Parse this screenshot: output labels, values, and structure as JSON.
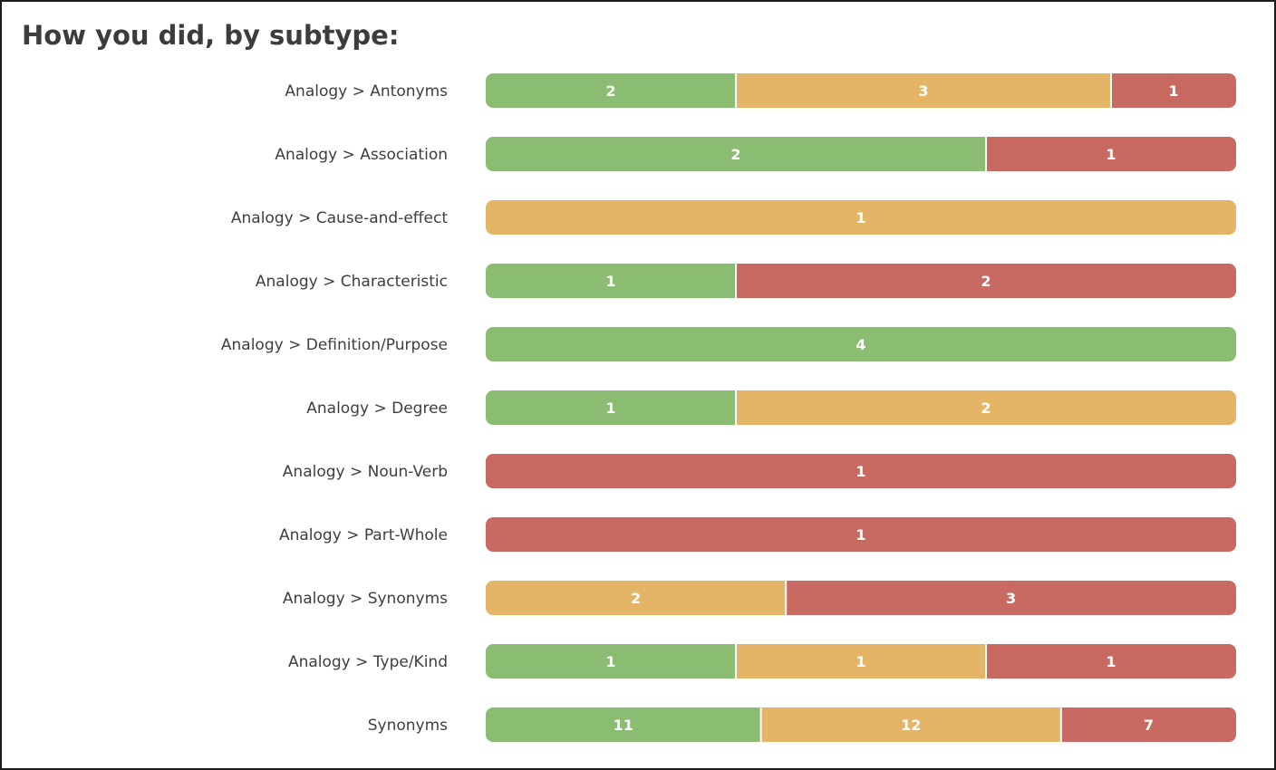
{
  "chart_data": {
    "type": "bar",
    "orientation": "horizontal",
    "stacked": "percent",
    "title": "How you did, by subtype:",
    "categories": [
      "Analogy > Antonyms",
      "Analogy > Association",
      "Analogy > Cause-and-effect",
      "Analogy > Characteristic",
      "Analogy > Definition/Purpose",
      "Analogy > Degree",
      "Analogy > Noun-Verb",
      "Analogy > Part-Whole",
      "Analogy > Synonyms",
      "Analogy > Type/Kind",
      "Synonyms"
    ],
    "series": [
      {
        "color": "#8abd71",
        "values": [
          2,
          2,
          0,
          1,
          4,
          1,
          0,
          0,
          0,
          1,
          11
        ]
      },
      {
        "color": "#e4b567",
        "values": [
          3,
          0,
          1,
          0,
          0,
          2,
          0,
          0,
          2,
          1,
          12
        ]
      },
      {
        "color": "#c96a62",
        "values": [
          1,
          1,
          0,
          2,
          0,
          0,
          1,
          1,
          3,
          1,
          7
        ]
      }
    ],
    "grid": false,
    "legend": "none"
  }
}
